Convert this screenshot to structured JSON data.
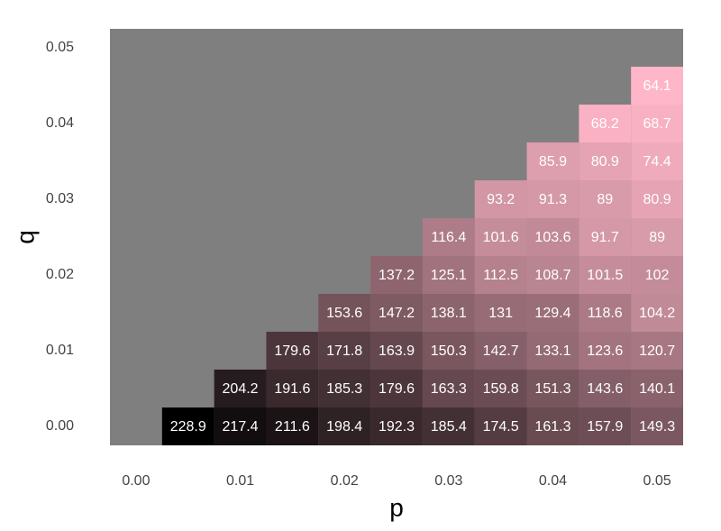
{
  "chart_data": {
    "type": "heatmap",
    "x_label": "p",
    "y_label": "q",
    "x": [
      0,
      0.005,
      0.01,
      0.015,
      0.02,
      0.025,
      0.03,
      0.035,
      0.04,
      0.045,
      0.05
    ],
    "y": [
      0,
      0.005,
      0.01,
      0.015,
      0.02,
      0.025,
      0.03,
      0.035,
      0.04,
      0.045,
      0.05
    ],
    "z": [
      [
        null,
        228.9,
        217.4,
        211.6,
        198.4,
        192.3,
        185.4,
        174.5,
        161.3,
        157.9,
        149.3
      ],
      [
        null,
        null,
        204.2,
        191.6,
        185.3,
        179.6,
        163.3,
        159.8,
        151.3,
        143.6,
        140.1
      ],
      [
        null,
        null,
        null,
        179.6,
        171.8,
        163.9,
        150.3,
        142.7,
        133.1,
        123.6,
        120.7
      ],
      [
        null,
        null,
        null,
        null,
        153.6,
        147.2,
        138.1,
        131,
        129.4,
        118.6,
        104.2
      ],
      [
        null,
        null,
        null,
        null,
        null,
        137.2,
        125.1,
        112.5,
        108.7,
        101.5,
        102
      ],
      [
        null,
        null,
        null,
        null,
        null,
        null,
        116.4,
        101.6,
        103.6,
        91.7,
        89
      ],
      [
        null,
        null,
        null,
        null,
        null,
        null,
        null,
        93.2,
        91.3,
        89,
        80.9
      ],
      [
        null,
        null,
        null,
        null,
        null,
        null,
        null,
        null,
        85.9,
        80.9,
        74.4
      ],
      [
        null,
        null,
        null,
        null,
        null,
        null,
        null,
        null,
        null,
        68.2,
        68.7
      ],
      [
        null,
        null,
        null,
        null,
        null,
        null,
        null,
        null,
        null,
        null,
        64.1
      ],
      [
        null,
        null,
        null,
        null,
        null,
        null,
        null,
        null,
        null,
        null,
        null
      ]
    ],
    "xlim": [
      -0.0025,
      0.0525
    ],
    "ylim": [
      -0.0025,
      0.0525
    ],
    "xticks": [
      {
        "value": 0,
        "label": "0.00"
      },
      {
        "value": 0.01,
        "label": "0.01"
      },
      {
        "value": 0.02,
        "label": "0.02"
      },
      {
        "value": 0.03,
        "label": "0.03"
      },
      {
        "value": 0.04,
        "label": "0.04"
      },
      {
        "value": 0.05,
        "label": "0.05"
      }
    ],
    "yticks": [
      {
        "value": 0,
        "label": "0.00"
      },
      {
        "value": 0.01,
        "label": "0.01"
      },
      {
        "value": 0.02,
        "label": "0.02"
      },
      {
        "value": 0.03,
        "label": "0.03"
      },
      {
        "value": 0.04,
        "label": "0.04"
      },
      {
        "value": 0.05,
        "label": "0.05"
      }
    ],
    "colorscale": [
      "#000000",
      "#ffb6c8"
    ],
    "missing_color": "#7f7f7f"
  }
}
